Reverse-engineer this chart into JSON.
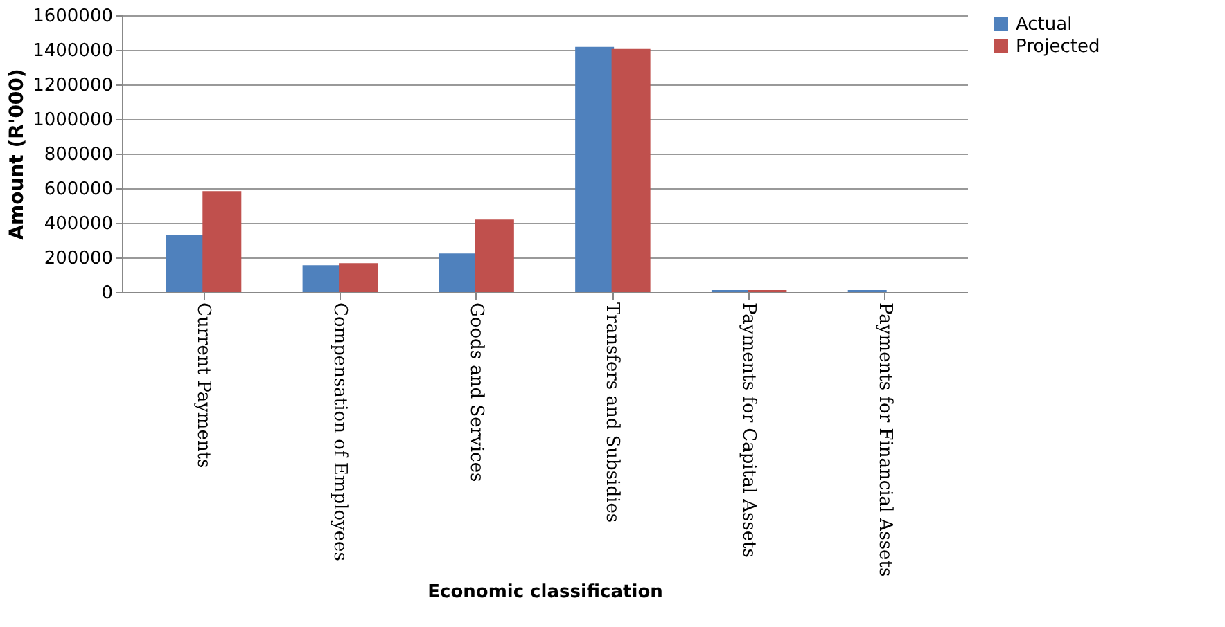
{
  "chart_data": {
    "type": "bar",
    "categories": [
      "Current Payments",
      "Compensation of Employees",
      "Goods and Services",
      "Transfers and Subsidies",
      "Payments for Capital Assets",
      "Payments for Financial Assets"
    ],
    "series": [
      {
        "name": "Actual",
        "color": "#4f81bd",
        "values": [
          330000,
          155000,
          223000,
          1417000,
          12000,
          12000
        ]
      },
      {
        "name": "Projected",
        "color": "#c0504d",
        "values": [
          583000,
          167000,
          419000,
          1405000,
          12000,
          0
        ]
      }
    ],
    "xlabel": "Economic classification",
    "ylabel": "Amount (R'000)",
    "ylim": [
      0,
      1600000
    ],
    "yticks": [
      0,
      200000,
      400000,
      600000,
      800000,
      1000000,
      1200000,
      1400000,
      1600000
    ],
    "grid": "y",
    "legend": "right"
  }
}
